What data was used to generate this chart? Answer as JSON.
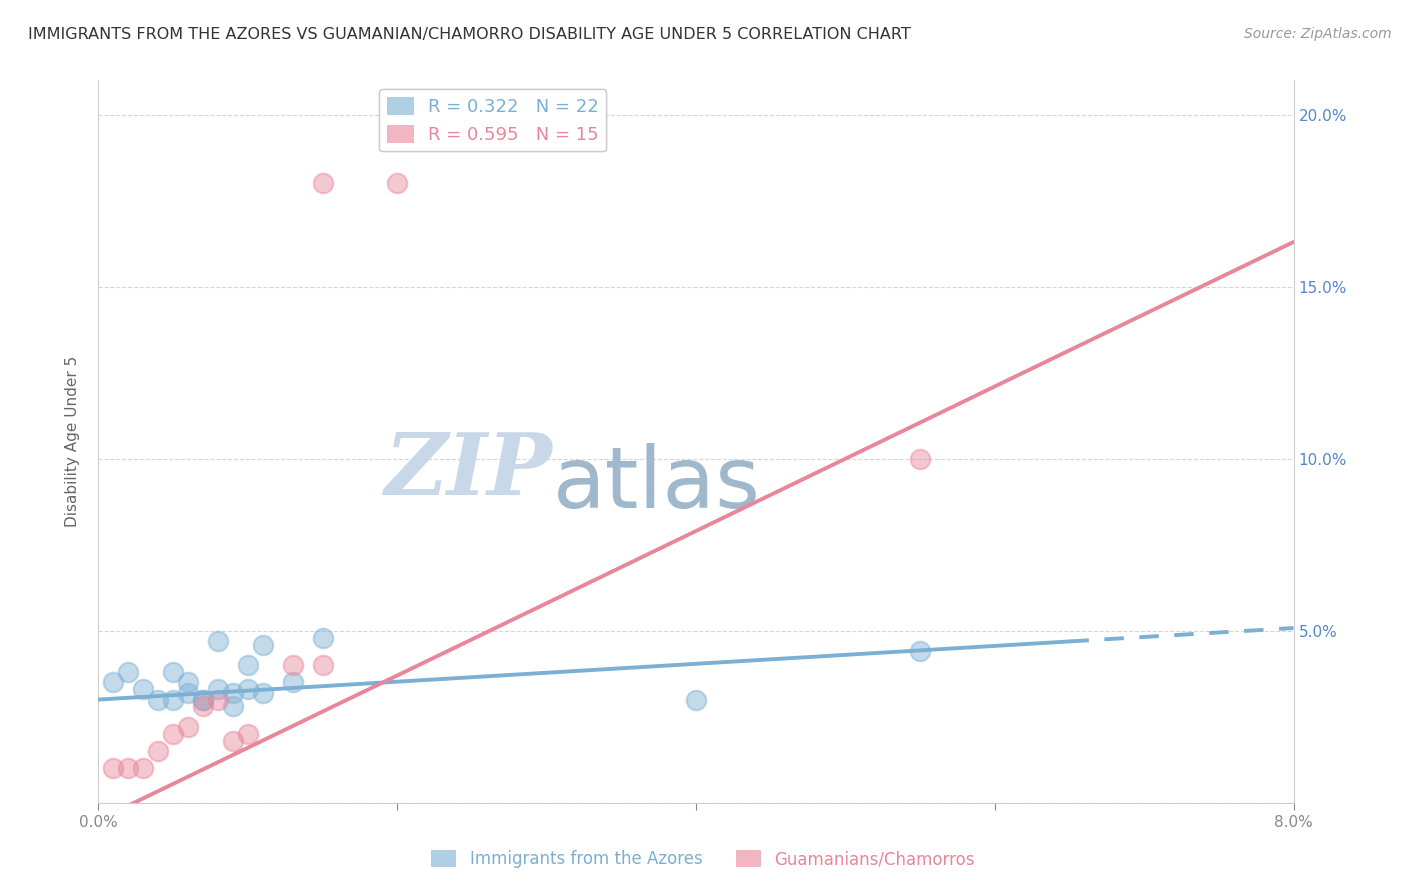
{
  "title": "IMMIGRANTS FROM THE AZORES VS GUAMANIAN/CHAMORRO DISABILITY AGE UNDER 5 CORRELATION CHART",
  "source": "Source: ZipAtlas.com",
  "ylabel": "Disability Age Under 5",
  "xlim": [
    0.0,
    0.08
  ],
  "ylim": [
    0.0,
    0.21
  ],
  "xticks": [
    0.0,
    0.02,
    0.04,
    0.06,
    0.08
  ],
  "xtick_labels": [
    "0.0%",
    "",
    "",
    "",
    "8.0%"
  ],
  "yticks_right": [
    0.05,
    0.1,
    0.15,
    0.2
  ],
  "ytick_labels_right": [
    "5.0%",
    "10.0%",
    "15.0%",
    "20.0%"
  ],
  "blue_R": 0.322,
  "blue_N": 22,
  "pink_R": 0.595,
  "pink_N": 15,
  "blue_points": [
    [
      0.001,
      0.035
    ],
    [
      0.002,
      0.038
    ],
    [
      0.003,
      0.033
    ],
    [
      0.004,
      0.03
    ],
    [
      0.005,
      0.03
    ],
    [
      0.005,
      0.038
    ],
    [
      0.006,
      0.035
    ],
    [
      0.006,
      0.032
    ],
    [
      0.007,
      0.03
    ],
    [
      0.007,
      0.03
    ],
    [
      0.008,
      0.047
    ],
    [
      0.008,
      0.033
    ],
    [
      0.009,
      0.032
    ],
    [
      0.009,
      0.028
    ],
    [
      0.01,
      0.04
    ],
    [
      0.01,
      0.033
    ],
    [
      0.011,
      0.032
    ],
    [
      0.011,
      0.046
    ],
    [
      0.013,
      0.035
    ],
    [
      0.015,
      0.048
    ],
    [
      0.04,
      0.03
    ],
    [
      0.055,
      0.044
    ]
  ],
  "pink_points": [
    [
      0.001,
      0.01
    ],
    [
      0.002,
      0.01
    ],
    [
      0.003,
      0.01
    ],
    [
      0.004,
      0.015
    ],
    [
      0.005,
      0.02
    ],
    [
      0.006,
      0.022
    ],
    [
      0.007,
      0.028
    ],
    [
      0.008,
      0.03
    ],
    [
      0.009,
      0.018
    ],
    [
      0.01,
      0.02
    ],
    [
      0.013,
      0.04
    ],
    [
      0.015,
      0.04
    ],
    [
      0.015,
      0.18
    ],
    [
      0.02,
      0.18
    ],
    [
      0.055,
      0.1
    ]
  ],
  "background_color": "#ffffff",
  "blue_color": "#7bafd4",
  "pink_color": "#e8869a",
  "grid_color": "#cccccc",
  "title_color": "#333333",
  "axis_label_color": "#666666",
  "tick_color": "#888888",
  "right_tick_color": "#5588cc",
  "watermark_zip_color": "#c8d8e8",
  "watermark_atlas_color": "#a0b8cc",
  "blue_line_intercept": 0.03,
  "blue_line_slope": 0.26,
  "pink_line_intercept": -0.005,
  "pink_line_slope": 2.1
}
